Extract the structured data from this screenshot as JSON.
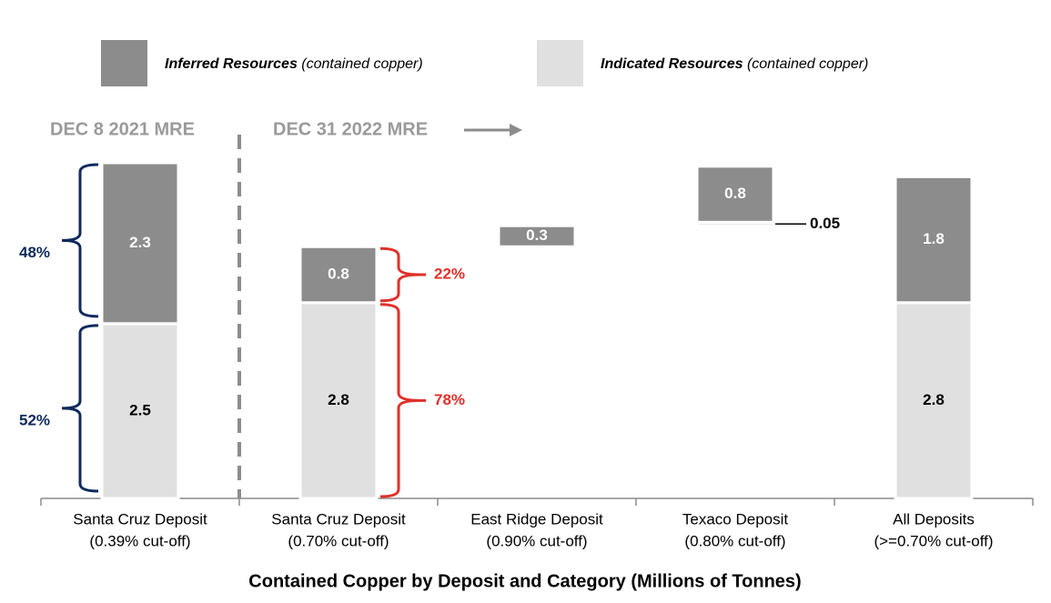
{
  "chart_data": {
    "type": "waterfall",
    "title": "Contained Copper by Deposit and Category (Millions of Tonnes)",
    "categories": [
      "Santa Cruz Deposit",
      "Santa Cruz Deposit",
      "East Ridge Deposit",
      "Texaco Deposit",
      "All Deposits"
    ],
    "category_notes": [
      "(0.39% cut-off)",
      "(0.70% cut-off)",
      "(0.90% cut-off)",
      "(0.80% cut-off)",
      "(>=0.70% cut-off)"
    ],
    "series": [
      {
        "name": "Inferred Resources",
        "color": "#8c8c8c",
        "values": [
          2.3,
          0.8,
          0.3,
          0.8,
          1.8
        ]
      },
      {
        "name": "Indicated Resources",
        "color": "#e0e0e0",
        "values": [
          2.5,
          2.8,
          null,
          0.05,
          2.8
        ]
      }
    ],
    "legend_note": "(contained copper)",
    "period_labels": [
      "DEC 8 2021 MRE",
      "DEC 31 2022 MRE"
    ],
    "annotations": [
      {
        "text": "48%",
        "color": "#0d2a5c"
      },
      {
        "text": "52%",
        "color": "#0d2a5c"
      },
      {
        "text": "22%",
        "color": "#e0302a"
      },
      {
        "text": "78%",
        "color": "#e0302a"
      }
    ]
  }
}
